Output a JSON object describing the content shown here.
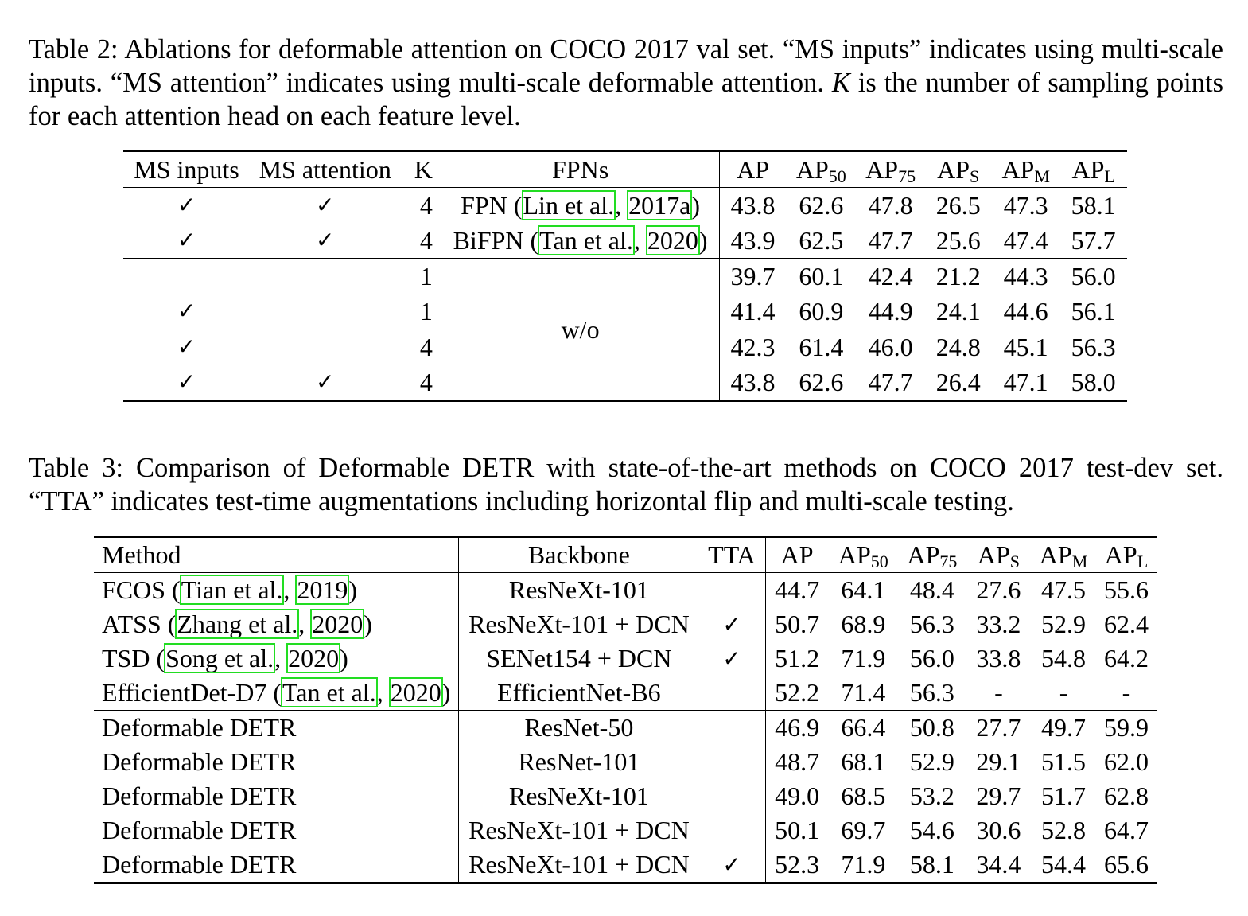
{
  "caption2": {
    "prefix": "Table 2: Ablations for deformable attention on COCO 2017 val set. “MS inputs” indicates using multi-scale inputs. “MS attention” indicates using multi-scale deformable attention.",
    "var": "K",
    "suffix": "is the number of sampling points for each attention head on each feature level."
  },
  "table2": {
    "headers": {
      "ms_inputs": "MS inputs",
      "ms_attention": "MS attention",
      "k": "K",
      "fpns": "FPNs",
      "ap": "AP",
      "ap50": "AP",
      "ap50_sub": "50",
      "ap75": "AP",
      "ap75_sub": "75",
      "aps": "AP",
      "aps_sub": "S",
      "apm": "AP",
      "apm_sub": "M",
      "apl": "AP",
      "apl_sub": "L"
    },
    "check": "✓",
    "rows": [
      {
        "ms_in": "✓",
        "ms_att": "✓",
        "k": "4",
        "fpn_name": "FPN (",
        "cite_a": "Lin et al.",
        "cite_sep": ", ",
        "cite_b": "2017a",
        "fpn_close": ")",
        "vals": [
          "43.8",
          "62.6",
          "47.8",
          "26.5",
          "47.3",
          "58.1"
        ]
      },
      {
        "ms_in": "✓",
        "ms_att": "✓",
        "k": "4",
        "fpn_name": "BiFPN (",
        "cite_a": "Tan et al.",
        "cite_sep": ", ",
        "cite_b": "2020",
        "fpn_close": ")",
        "vals": [
          "43.9",
          "62.5",
          "47.7",
          "25.6",
          "47.4",
          "57.7"
        ]
      },
      {
        "ms_in": "",
        "ms_att": "",
        "k": "1",
        "vals": [
          "39.7",
          "60.1",
          "42.4",
          "21.2",
          "44.3",
          "56.0"
        ]
      },
      {
        "ms_in": "✓",
        "ms_att": "",
        "k": "1",
        "vals": [
          "41.4",
          "60.9",
          "44.9",
          "24.1",
          "44.6",
          "56.1"
        ]
      },
      {
        "ms_in": "✓",
        "ms_att": "",
        "k": "4",
        "vals": [
          "42.3",
          "61.4",
          "46.0",
          "24.8",
          "45.1",
          "56.3"
        ]
      },
      {
        "ms_in": "✓",
        "ms_att": "✓",
        "k": "4",
        "vals": [
          "43.8",
          "62.6",
          "47.7",
          "26.4",
          "47.1",
          "58.0"
        ]
      }
    ],
    "wo": "w/o"
  },
  "caption3": {
    "text": "Table 3: Comparison of Deformable DETR with state-of-the-art methods on COCO 2017 test-dev set. “TTA” indicates test-time augmentations including horizontal flip and multi-scale testing."
  },
  "table3": {
    "headers": {
      "method": "Method",
      "backbone": "Backbone",
      "tta": "TTA",
      "ap": "AP",
      "ap50": "AP",
      "ap50_sub": "50",
      "ap75": "AP",
      "ap75_sub": "75",
      "aps": "AP",
      "aps_sub": "S",
      "apm": "AP",
      "apm_sub": "M",
      "apl": "AP",
      "apl_sub": "L"
    },
    "rows": [
      {
        "name": "FCOS (",
        "cite_a": "Tian et al.",
        "cite_sep": ", ",
        "cite_b": "2019",
        "close": ")",
        "backbone": "ResNeXt-101",
        "tta": "",
        "vals": [
          "44.7",
          "64.1",
          "48.4",
          "27.6",
          "47.5",
          "55.6"
        ]
      },
      {
        "name": "ATSS (",
        "cite_a": "Zhang et al.",
        "cite_sep": ", ",
        "cite_b": "2020",
        "close": ")",
        "backbone": "ResNeXt-101 + DCN",
        "tta": "✓",
        "vals": [
          "50.7",
          "68.9",
          "56.3",
          "33.2",
          "52.9",
          "62.4"
        ]
      },
      {
        "name": "TSD (",
        "cite_a": "Song et al.",
        "cite_sep": ", ",
        "cite_b": "2020",
        "close": ")",
        "backbone": "SENet154 + DCN",
        "tta": "✓",
        "vals": [
          "51.2",
          "71.9",
          "56.0",
          "33.8",
          "54.8",
          "64.2"
        ]
      },
      {
        "name": "EfficientDet-D7 (",
        "cite_a": "Tan et al.",
        "cite_sep": ", ",
        "cite_b": "2020",
        "close": ")",
        "backbone": "EfficientNet-B6",
        "tta": "",
        "vals": [
          "52.2",
          "71.4",
          "56.3",
          "-",
          "-",
          "-"
        ]
      },
      {
        "name": "Deformable DETR",
        "backbone": "ResNet-50",
        "tta": "",
        "vals": [
          "46.9",
          "66.4",
          "50.8",
          "27.7",
          "49.7",
          "59.9"
        ]
      },
      {
        "name": "Deformable DETR",
        "backbone": "ResNet-101",
        "tta": "",
        "vals": [
          "48.7",
          "68.1",
          "52.9",
          "29.1",
          "51.5",
          "62.0"
        ]
      },
      {
        "name": "Deformable DETR",
        "backbone": "ResNeXt-101",
        "tta": "",
        "vals": [
          "49.0",
          "68.5",
          "53.2",
          "29.7",
          "51.7",
          "62.8"
        ]
      },
      {
        "name": "Deformable DETR",
        "backbone": "ResNeXt-101 + DCN",
        "tta": "",
        "vals": [
          "50.1",
          "69.7",
          "54.6",
          "30.6",
          "52.8",
          "64.7"
        ]
      },
      {
        "name": "Deformable DETR",
        "backbone": "ResNeXt-101 + DCN",
        "tta": "✓",
        "vals": [
          "52.3",
          "71.9",
          "58.1",
          "34.4",
          "54.4",
          "65.6"
        ]
      }
    ]
  },
  "colors": {
    "citation_box": "#22dd22",
    "text": "#000000",
    "background": "#ffffff"
  }
}
